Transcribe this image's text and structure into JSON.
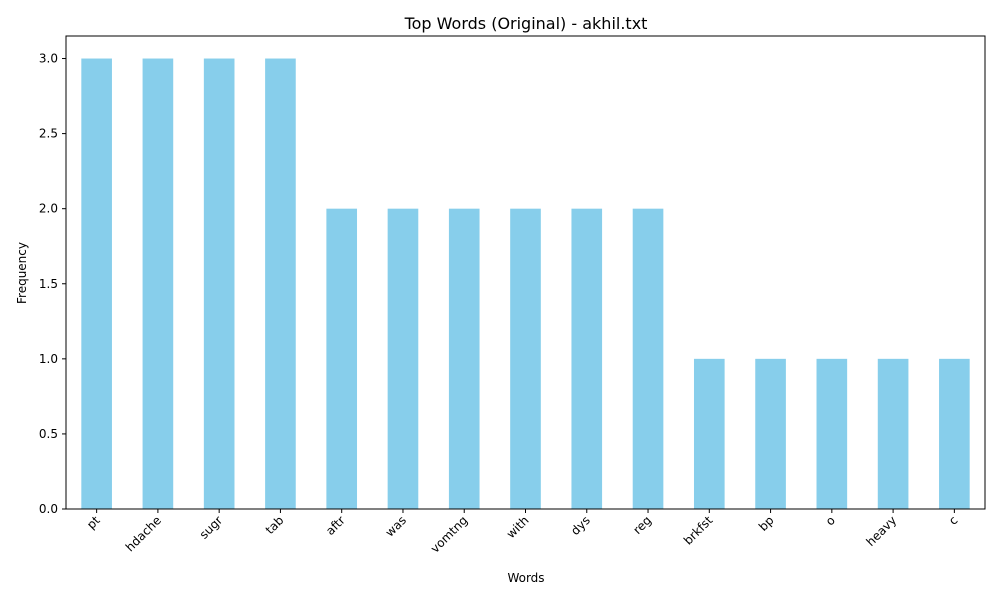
{
  "chart_data": {
    "type": "bar",
    "title": "Top Words (Original) - akhil.txt",
    "xlabel": "Words",
    "ylabel": "Frequency",
    "categories": [
      "pt",
      "hdache",
      "sugr",
      "tab",
      "aftr",
      "was",
      "vomtng",
      "with",
      "dys",
      "reg",
      "brkfst",
      "bp",
      "o",
      "heavy",
      "c"
    ],
    "values": [
      3,
      3,
      3,
      3,
      2,
      2,
      2,
      2,
      2,
      2,
      1,
      1,
      1,
      1,
      1
    ],
    "ylim": [
      0,
      3.15
    ],
    "yticks": [
      "0.0",
      "0.5",
      "1.0",
      "1.5",
      "2.0",
      "2.5",
      "3.0"
    ],
    "bar_color": "#87ceeb",
    "grid": false,
    "legend": "none"
  }
}
